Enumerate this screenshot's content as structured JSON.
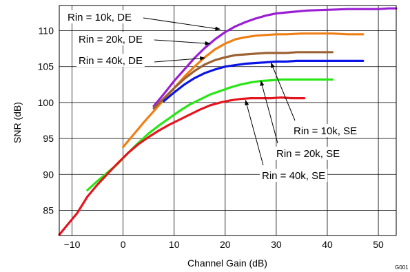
{
  "chart_data": {
    "type": "line",
    "xlabel": "Channel Gain (dB)",
    "ylabel": "SNR (dB)",
    "xlim": [
      -12.5,
      53.5
    ],
    "ylim": [
      81.5,
      113.5
    ],
    "xticks": [
      -10,
      0,
      10,
      20,
      30,
      40,
      50
    ],
    "xtick_labels": [
      "−10",
      "0",
      "10",
      "20",
      "30",
      "40",
      "50"
    ],
    "yticks": [
      85,
      90,
      95,
      100,
      105,
      110
    ],
    "grid": true,
    "figure_id": "G001",
    "series": [
      {
        "label": "Rin = 10k, DE",
        "color": "#9a1ed2",
        "x": [
          6,
          8,
          10,
          12,
          14,
          16,
          18,
          20,
          22,
          24,
          26,
          28,
          30,
          33,
          36,
          40,
          44,
          48,
          50,
          52,
          53.5
        ],
        "y": [
          99.5,
          101.2,
          103,
          104.6,
          106.2,
          107.6,
          108.8,
          109.8,
          110.6,
          111.2,
          111.7,
          112.1,
          112.4,
          112.6,
          112.8,
          112.9,
          113,
          113,
          113,
          113.1,
          113.1
        ]
      },
      {
        "label": "Rin = 20k, DE",
        "color": "#f07f13",
        "x": [
          0,
          2,
          4,
          6,
          8,
          10,
          12,
          14,
          16,
          18,
          20,
          22,
          24,
          26,
          28,
          30,
          32,
          35,
          38,
          41,
          44,
          47
        ],
        "y": [
          93.8,
          95.5,
          97.2,
          98.8,
          100.4,
          102,
          103.6,
          105,
          106.3,
          107.4,
          108.2,
          108.8,
          109.1,
          109.3,
          109.4,
          109.5,
          109.5,
          109.6,
          109.6,
          109.6,
          109.5,
          109.5
        ]
      },
      {
        "label": "Rin = 40k, DE",
        "color": "#9c6233",
        "x": [
          6,
          8,
          10,
          12,
          14,
          16,
          18,
          20,
          22,
          24,
          26,
          28,
          30,
          32,
          34,
          36,
          38,
          41
        ],
        "y": [
          99.2,
          100.6,
          102,
          103.3,
          104.4,
          105.3,
          105.9,
          106.3,
          106.6,
          106.7,
          106.8,
          106.9,
          106.9,
          106.9,
          107,
          107,
          107,
          107
        ]
      },
      {
        "label": "Rin = 10k, SE",
        "color": "#0a14e6",
        "x": [
          8,
          10,
          12,
          14,
          16,
          18,
          20,
          22,
          24,
          26,
          28,
          30,
          32,
          34,
          36,
          38,
          40,
          42,
          44,
          47
        ],
        "y": [
          100.2,
          101.4,
          102.5,
          103.4,
          104.1,
          104.6,
          105,
          105.2,
          105.4,
          105.5,
          105.6,
          105.7,
          105.7,
          105.8,
          105.8,
          105.8,
          105.8,
          105.8,
          105.8,
          105.8
        ]
      },
      {
        "label": "Rin = 20k, SE",
        "color": "#28e614",
        "x": [
          -7,
          -5,
          -3,
          -1,
          1,
          3,
          5,
          7,
          9,
          11,
          13,
          15,
          17,
          19,
          21,
          23,
          25,
          27,
          29,
          31,
          34,
          37,
          41
        ],
        "y": [
          87.8,
          89.1,
          90.3,
          91.5,
          93,
          94.4,
          95.7,
          96.8,
          97.8,
          98.8,
          99.7,
          100.4,
          101.1,
          101.6,
          102.1,
          102.5,
          102.8,
          103,
          103.1,
          103.2,
          103.2,
          103.2,
          103.2
        ]
      },
      {
        "label": "Rin = 40k, SE",
        "color": "#e6141e",
        "x": [
          -12.5,
          -11,
          -9,
          -7,
          -5,
          -3,
          -1,
          1,
          3,
          5,
          7,
          9,
          11,
          13,
          15,
          17,
          19,
          21,
          23,
          25,
          27,
          29,
          31,
          33,
          35.5
        ],
        "y": [
          81.6,
          82.9,
          84.6,
          86.9,
          88.6,
          90.1,
          91.6,
          93,
          94.2,
          95.2,
          96.1,
          96.9,
          97.6,
          98.3,
          99,
          99.6,
          100,
          100.3,
          100.5,
          100.6,
          100.6,
          100.6,
          100.7,
          100.6,
          100.6
        ]
      }
    ],
    "annotations": [
      {
        "text": "Rin = 10k, DE",
        "target": [
          19,
          110.2
        ]
      },
      {
        "text": "Rin = 20k, DE",
        "target": [
          17,
          108.2
        ]
      },
      {
        "text": "Rin = 40k, DE",
        "target": [
          16,
          106.2
        ]
      },
      {
        "text": "Rin = 10k, SE",
        "target": [
          29,
          105.5
        ]
      },
      {
        "text": "Rin = 20k, SE",
        "target": [
          27,
          103.0
        ]
      },
      {
        "text": "Rin = 40k, SE",
        "target": [
          24,
          100.3
        ]
      }
    ]
  }
}
